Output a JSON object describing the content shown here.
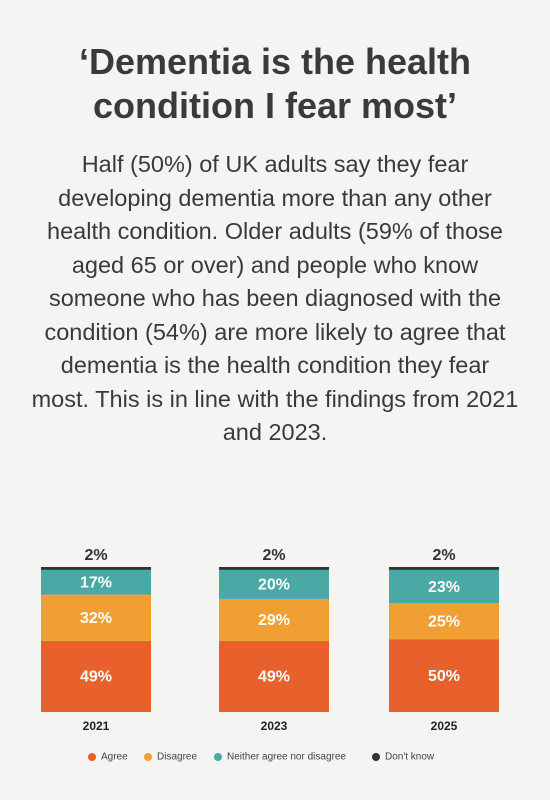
{
  "chart_data": {
    "type": "stacked-bar",
    "title": "‘Dementia is the health condition I fear most’",
    "subtitle": "Half (50%) of UK adults say they fear developing dementia more than any other health condition. Older adults (59% of those aged 65 or over) and people who know someone who has been diagnosed with the condition (54%) are more likely to agree that dementia is the health condition they fear most. This is in line with the findings from 2021 and 2023.",
    "categories": [
      "2021",
      "2023",
      "2025"
    ],
    "series": [
      {
        "name": "Agree",
        "color": "#e8612c",
        "values": [
          49,
          49,
          50
        ],
        "value_labels": [
          "49%",
          "49%",
          "50%"
        ]
      },
      {
        "name": "Disagree",
        "color": "#f0a033",
        "values": [
          32,
          29,
          25
        ],
        "value_labels": [
          "32%",
          "29%",
          "25%"
        ]
      },
      {
        "name": "Neither agree nor disagree",
        "color": "#4aa9a4",
        "values": [
          17,
          20,
          23
        ],
        "value_labels": [
          "17%",
          "20%",
          "23%"
        ]
      },
      {
        "name": "Don't know",
        "color": "#333333",
        "values": [
          2,
          2,
          2
        ],
        "value_labels": [
          "2%",
          "2%",
          "2%"
        ]
      }
    ]
  }
}
